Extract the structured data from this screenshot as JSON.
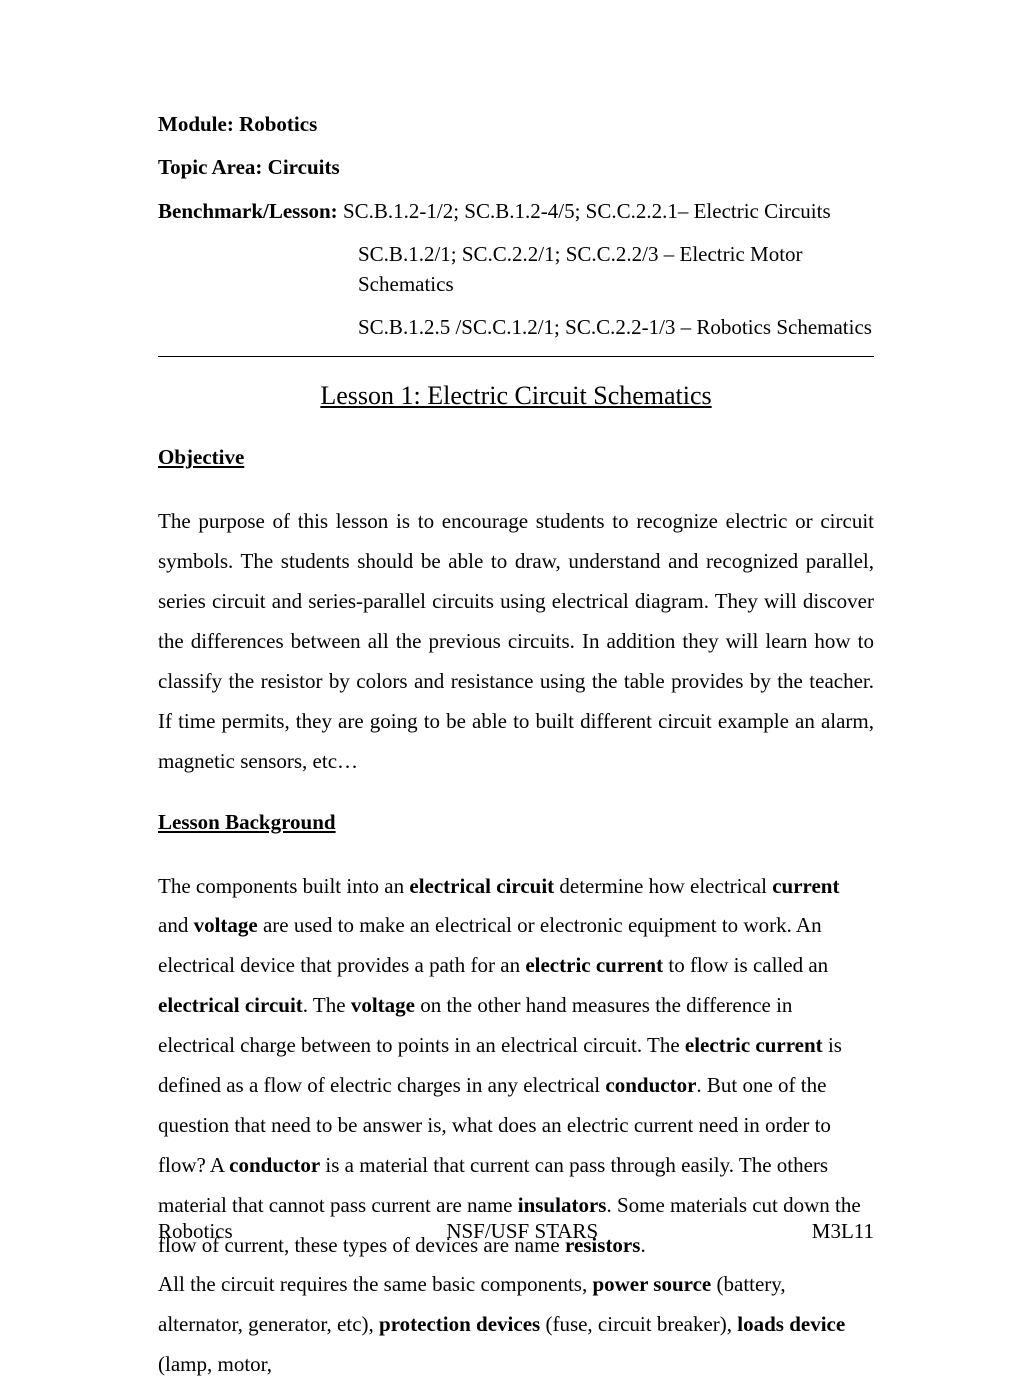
{
  "header": {
    "module_label": "Module: ",
    "module_value": "Robotics",
    "topic_label": "Topic Area: Circuits",
    "benchmark_label": "Benchmark/Lesson: ",
    "benchmark_line1": "SC.B.1.2-1/2; SC.B.1.2-4/5; SC.C.2.2.1– Electric Circuits",
    "benchmark_line2": "SC.B.1.2/1; SC.C.2.2/1; SC.C.2.2/3 – Electric Motor Schematics",
    "benchmark_line3": "SC.B.1.2.5 /SC.C.1.2/1; SC.C.2.2-1/3 – Robotics Schematics"
  },
  "lesson_title": "Lesson 1: Electric Circuit Schematics",
  "objective": {
    "heading": "Objective",
    "text": "The purpose of this lesson is to encourage students to recognize electric or circuit symbols. The students should be able to draw, understand and recognized parallel, series circuit and series-parallel circuits using electrical diagram. They will discover the differences between all the previous circuits. In addition they will learn how to classify the resistor by colors and resistance using the table provides by the teacher. If time permits, they are going to be able to built different circuit example an alarm, magnetic sensors, etc…"
  },
  "background": {
    "heading": "Lesson Background",
    "p1_pre": "The components built into an ",
    "p1_b1": "electrical circuit",
    "p1_s1": " determine how electrical ",
    "p1_b2": "current",
    "p1_s2": " and ",
    "p1_b3": "voltage",
    "p1_s3": " are used to make an electrical or electronic equipment to work. An electrical device that provides a path for an ",
    "p1_b4": "electric current",
    "p1_s4": " to flow is called an ",
    "p1_b5": "electrical circuit",
    "p1_s5": ". The ",
    "p1_b6": "voltage",
    "p1_s6": " on the other hand measures the difference in electrical charge between to points in an electrical circuit.  The ",
    "p1_b7": "electric current",
    "p1_s7": " is defined as a flow of electric charges in any electrical ",
    "p1_b8": "conductor",
    "p1_s8": ". But one of the question that need to be answer is, what does an electric current need in order to flow? A ",
    "p1_b9": "conductor",
    "p1_s9": " is a material that current can pass through easily. The others material that cannot pass current are name ",
    "p1_b10": "insulators",
    "p1_s10": ". Some materials cut down the flow of current, these types of devices are name ",
    "p1_b11": "resistors",
    "p1_s11": ".",
    "p2_pre": "All the circuit requires the same basic components,  ",
    "p2_b1": "power source",
    "p2_s1": " (battery, alternator, generator, etc), ",
    "p2_b2": "protection devices",
    "p2_s2": " (fuse, circuit breaker), ",
    "p2_b3": "loads device",
    "p2_s3": " (lamp, motor,"
  },
  "footer": {
    "left": "Robotics",
    "center": "NSF/USF STARS",
    "right": "M3L11"
  }
}
